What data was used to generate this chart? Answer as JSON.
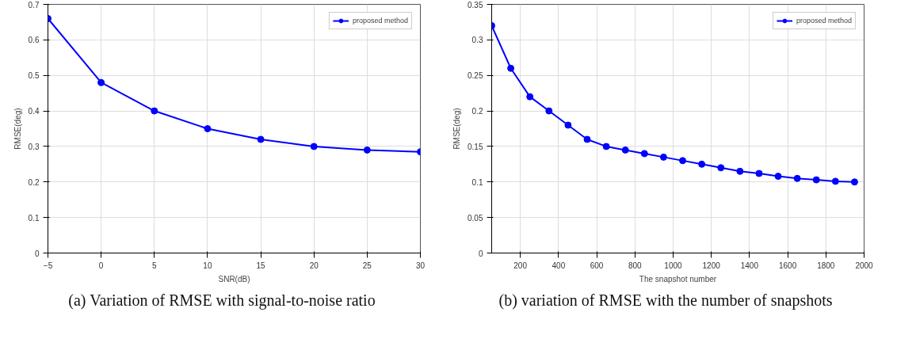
{
  "chart_data": [
    {
      "type": "line",
      "xlabel": "SNR(dB)",
      "ylabel": "RMSE(deg)",
      "x": [
        -5,
        0,
        5,
        10,
        15,
        20,
        25,
        30
      ],
      "series": [
        {
          "name": "proposed method",
          "color": "#0000ff",
          "values": [
            0.66,
            0.48,
            0.4,
            0.35,
            0.32,
            0.3,
            0.29,
            0.285
          ]
        }
      ],
      "xlim": [
        -5,
        30
      ],
      "xticks": [
        -5,
        0,
        5,
        10,
        15,
        20,
        25,
        30
      ],
      "ylim": [
        0,
        0.7
      ],
      "yticks": [
        0,
        0.1,
        0.2,
        0.3,
        0.4,
        0.5,
        0.6,
        0.7
      ],
      "grid": true,
      "legend": "top right",
      "marker": "circle",
      "line_style": "solid",
      "annotations": [
        "(a) Variation of RMSE with signal-to-noise ratio"
      ]
    },
    {
      "type": "line",
      "xlabel": "The snapshot number",
      "ylabel": "RMSE(deg)",
      "x": [
        50,
        150,
        250,
        350,
        450,
        550,
        650,
        750,
        850,
        950,
        1050,
        1150,
        1250,
        1350,
        1450,
        1550,
        1650,
        1750,
        1850,
        1950
      ],
      "series": [
        {
          "name": "proposed method",
          "color": "#0000ff",
          "values": [
            0.32,
            0.26,
            0.22,
            0.2,
            0.18,
            0.16,
            0.15,
            0.145,
            0.14,
            0.135,
            0.13,
            0.125,
            0.12,
            0.115,
            0.112,
            0.108,
            0.105,
            0.103,
            0.101,
            0.1
          ]
        }
      ],
      "xlim": [
        50,
        2000
      ],
      "xticks": [
        200,
        400,
        600,
        800,
        1000,
        1200,
        1400,
        1600,
        1800,
        2000
      ],
      "ylim": [
        0,
        0.35
      ],
      "yticks": [
        0,
        0.05,
        0.1,
        0.15,
        0.2,
        0.25,
        0.3,
        0.35
      ],
      "grid": true,
      "legend": "top right",
      "marker": "circle",
      "line_style": "solid",
      "annotations": [
        "(b) variation of RMSE with the number of snapshots"
      ]
    }
  ]
}
